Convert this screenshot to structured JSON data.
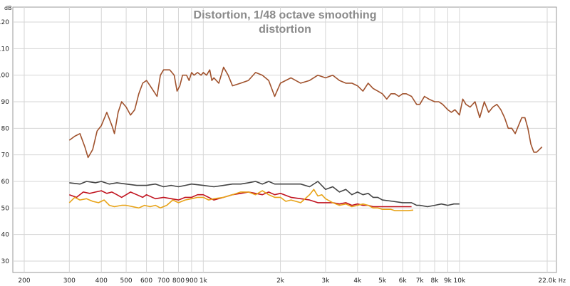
{
  "chart_data": {
    "type": "line",
    "title": "Distortion, 1/48 octave smoothing",
    "subtitle": "distortion",
    "ylabel": "dB",
    "xunit": "Hz",
    "xscale": "log",
    "xlim": [
      200,
      22000
    ],
    "ylim": [
      25,
      125
    ],
    "grid": true,
    "y_ticks": [
      30,
      40,
      50,
      60,
      70,
      80,
      90,
      100,
      110,
      120
    ],
    "x_ticks": [
      {
        "v": 200,
        "label": "200"
      },
      {
        "v": 300,
        "label": "300"
      },
      {
        "v": 400,
        "label": "400"
      },
      {
        "v": 500,
        "label": "500"
      },
      {
        "v": 600,
        "label": "600"
      },
      {
        "v": 700,
        "label": "700"
      },
      {
        "v": 800,
        "label": "800"
      },
      {
        "v": 900,
        "label": "900"
      },
      {
        "v": 1000,
        "label": "1k"
      },
      {
        "v": 2000,
        "label": "2k"
      },
      {
        "v": 3000,
        "label": "3k"
      },
      {
        "v": 4000,
        "label": "4k"
      },
      {
        "v": 5000,
        "label": "5k"
      },
      {
        "v": 6000,
        "label": "6k"
      },
      {
        "v": 7000,
        "label": "7k"
      },
      {
        "v": 8000,
        "label": "8k"
      },
      {
        "v": 9000,
        "label": "9k"
      },
      {
        "v": 10000,
        "label": "10k"
      },
      {
        "v": 22000,
        "label": "22.0k"
      }
    ],
    "series": [
      {
        "color": "#a0522d",
        "points": [
          [
            300,
            75.5
          ],
          [
            315,
            77
          ],
          [
            330,
            78
          ],
          [
            345,
            73
          ],
          [
            355,
            69
          ],
          [
            370,
            72
          ],
          [
            385,
            79
          ],
          [
            400,
            81
          ],
          [
            420,
            86
          ],
          [
            440,
            81
          ],
          [
            450,
            78
          ],
          [
            465,
            86
          ],
          [
            480,
            90
          ],
          [
            500,
            88
          ],
          [
            520,
            85
          ],
          [
            540,
            87
          ],
          [
            560,
            93
          ],
          [
            580,
            97
          ],
          [
            600,
            98
          ],
          [
            620,
            96
          ],
          [
            640,
            94
          ],
          [
            660,
            92
          ],
          [
            680,
            100
          ],
          [
            700,
            102
          ],
          [
            740,
            102
          ],
          [
            770,
            100
          ],
          [
            790,
            94
          ],
          [
            810,
            96
          ],
          [
            830,
            100
          ],
          [
            860,
            100
          ],
          [
            880,
            98
          ],
          [
            900,
            101
          ],
          [
            920,
            100
          ],
          [
            950,
            101
          ],
          [
            980,
            100
          ],
          [
            1000,
            101
          ],
          [
            1030,
            100
          ],
          [
            1060,
            102
          ],
          [
            1080,
            98
          ],
          [
            1100,
            99
          ],
          [
            1150,
            97
          ],
          [
            1200,
            103
          ],
          [
            1250,
            100
          ],
          [
            1300,
            96
          ],
          [
            1400,
            97
          ],
          [
            1500,
            98
          ],
          [
            1600,
            101
          ],
          [
            1700,
            100
          ],
          [
            1800,
            98
          ],
          [
            1900,
            92
          ],
          [
            2000,
            97
          ],
          [
            2200,
            99
          ],
          [
            2400,
            97
          ],
          [
            2600,
            98
          ],
          [
            2800,
            100
          ],
          [
            3000,
            99
          ],
          [
            3200,
            100
          ],
          [
            3400,
            98
          ],
          [
            3600,
            97
          ],
          [
            3800,
            97
          ],
          [
            4000,
            96
          ],
          [
            4200,
            94
          ],
          [
            4400,
            97
          ],
          [
            4600,
            95
          ],
          [
            4800,
            94
          ],
          [
            5000,
            93
          ],
          [
            5200,
            91
          ],
          [
            5400,
            93
          ],
          [
            5600,
            93
          ],
          [
            5800,
            92
          ],
          [
            6000,
            93
          ],
          [
            6200,
            93
          ],
          [
            6500,
            92
          ],
          [
            6800,
            89
          ],
          [
            7000,
            89
          ],
          [
            7300,
            92
          ],
          [
            7600,
            91
          ],
          [
            8000,
            90
          ],
          [
            8300,
            90
          ],
          [
            8600,
            89
          ],
          [
            9000,
            87
          ],
          [
            9300,
            86
          ],
          [
            9600,
            87
          ],
          [
            10000,
            85
          ],
          [
            10300,
            91
          ],
          [
            10600,
            89
          ],
          [
            11000,
            88
          ],
          [
            11500,
            90
          ],
          [
            12000,
            84
          ],
          [
            12500,
            90
          ],
          [
            13000,
            86
          ],
          [
            13500,
            88
          ],
          [
            14000,
            89
          ],
          [
            14500,
            87
          ],
          [
            15000,
            84
          ],
          [
            15500,
            80
          ],
          [
            16000,
            80
          ],
          [
            16500,
            78
          ],
          [
            17000,
            81
          ],
          [
            17500,
            84
          ],
          [
            18000,
            84
          ],
          [
            18500,
            80
          ],
          [
            19000,
            74
          ],
          [
            19500,
            71
          ],
          [
            20000,
            71
          ],
          [
            20500,
            72
          ],
          [
            21000,
            73
          ]
        ]
      },
      {
        "color": "#444444",
        "points": [
          [
            300,
            59.5
          ],
          [
            330,
            59
          ],
          [
            350,
            60
          ],
          [
            380,
            59.5
          ],
          [
            400,
            60
          ],
          [
            430,
            59
          ],
          [
            460,
            59.5
          ],
          [
            500,
            59
          ],
          [
            550,
            58.5
          ],
          [
            600,
            58.5
          ],
          [
            650,
            59
          ],
          [
            700,
            58
          ],
          [
            750,
            58.5
          ],
          [
            800,
            58
          ],
          [
            850,
            58.5
          ],
          [
            900,
            59
          ],
          [
            1000,
            58.5
          ],
          [
            1100,
            58
          ],
          [
            1200,
            58.5
          ],
          [
            1300,
            59
          ],
          [
            1400,
            59
          ],
          [
            1500,
            59.5
          ],
          [
            1600,
            60
          ],
          [
            1700,
            59
          ],
          [
            1800,
            60
          ],
          [
            1900,
            59
          ],
          [
            2000,
            59
          ],
          [
            2200,
            59
          ],
          [
            2400,
            59
          ],
          [
            2600,
            58
          ],
          [
            2800,
            60
          ],
          [
            3000,
            57
          ],
          [
            3200,
            58
          ],
          [
            3400,
            56
          ],
          [
            3600,
            57
          ],
          [
            3800,
            55
          ],
          [
            4000,
            56
          ],
          [
            4200,
            55
          ],
          [
            4400,
            55.5
          ],
          [
            4600,
            54
          ],
          [
            4800,
            54
          ],
          [
            5000,
            53
          ],
          [
            5500,
            52.5
          ],
          [
            6000,
            52
          ],
          [
            6500,
            52
          ],
          [
            6800,
            51
          ],
          [
            7000,
            51
          ],
          [
            7500,
            50.5
          ],
          [
            8000,
            51
          ],
          [
            8500,
            51.5
          ],
          [
            9000,
            51
          ],
          [
            9500,
            51.5
          ],
          [
            10000,
            51.5
          ]
        ]
      },
      {
        "color": "#c0121e",
        "points": [
          [
            300,
            55
          ],
          [
            320,
            54
          ],
          [
            340,
            56
          ],
          [
            360,
            55.5
          ],
          [
            380,
            56
          ],
          [
            400,
            56.5
          ],
          [
            420,
            55.5
          ],
          [
            440,
            56
          ],
          [
            460,
            55
          ],
          [
            480,
            54
          ],
          [
            500,
            55
          ],
          [
            520,
            56
          ],
          [
            550,
            55
          ],
          [
            580,
            54
          ],
          [
            600,
            55
          ],
          [
            650,
            53.5
          ],
          [
            700,
            54
          ],
          [
            750,
            53.5
          ],
          [
            800,
            53
          ],
          [
            850,
            54
          ],
          [
            900,
            54
          ],
          [
            950,
            55
          ],
          [
            1000,
            55
          ],
          [
            1100,
            53
          ],
          [
            1200,
            54
          ],
          [
            1300,
            55
          ],
          [
            1400,
            55.5
          ],
          [
            1500,
            56
          ],
          [
            1600,
            55.5
          ],
          [
            1700,
            55
          ],
          [
            1800,
            56
          ],
          [
            1900,
            55
          ],
          [
            2000,
            55.5
          ],
          [
            2200,
            54
          ],
          [
            2400,
            53.5
          ],
          [
            2600,
            53
          ],
          [
            2800,
            52
          ],
          [
            3000,
            52
          ],
          [
            3200,
            52
          ],
          [
            3400,
            51.5
          ],
          [
            3600,
            52
          ],
          [
            3800,
            51
          ],
          [
            4000,
            51.5
          ],
          [
            4200,
            51
          ],
          [
            4400,
            51
          ],
          [
            4600,
            50.5
          ],
          [
            4800,
            50.5
          ],
          [
            5000,
            50.5
          ],
          [
            5500,
            50.5
          ],
          [
            6000,
            50.5
          ],
          [
            6500,
            50.5
          ]
        ]
      },
      {
        "color": "#e8a317",
        "points": [
          [
            300,
            52
          ],
          [
            315,
            54
          ],
          [
            330,
            53
          ],
          [
            350,
            53.5
          ],
          [
            370,
            52.5
          ],
          [
            390,
            52
          ],
          [
            410,
            53
          ],
          [
            430,
            51
          ],
          [
            450,
            50.5
          ],
          [
            480,
            51
          ],
          [
            500,
            51
          ],
          [
            530,
            50.5
          ],
          [
            560,
            50
          ],
          [
            590,
            51
          ],
          [
            620,
            50.5
          ],
          [
            650,
            51
          ],
          [
            680,
            50
          ],
          [
            720,
            51
          ],
          [
            760,
            53
          ],
          [
            800,
            52
          ],
          [
            850,
            53
          ],
          [
            900,
            53.5
          ],
          [
            950,
            54
          ],
          [
            1000,
            54
          ],
          [
            1050,
            53
          ],
          [
            1100,
            53.5
          ],
          [
            1200,
            54
          ],
          [
            1300,
            55
          ],
          [
            1400,
            56
          ],
          [
            1500,
            56
          ],
          [
            1600,
            55
          ],
          [
            1700,
            56.5
          ],
          [
            1800,
            55
          ],
          [
            1900,
            54
          ],
          [
            2000,
            54
          ],
          [
            2100,
            52.5
          ],
          [
            2200,
            53
          ],
          [
            2400,
            52
          ],
          [
            2600,
            55
          ],
          [
            2700,
            57
          ],
          [
            2800,
            54.5
          ],
          [
            2900,
            55
          ],
          [
            3000,
            53.5
          ],
          [
            3200,
            52
          ],
          [
            3400,
            51
          ],
          [
            3600,
            51.5
          ],
          [
            3800,
            50.5
          ],
          [
            4000,
            51
          ],
          [
            4200,
            51.5
          ],
          [
            4400,
            51
          ],
          [
            4600,
            50
          ],
          [
            4800,
            50
          ],
          [
            5000,
            49.5
          ],
          [
            5200,
            49.5
          ],
          [
            5400,
            49.5
          ],
          [
            5600,
            49
          ],
          [
            5800,
            49
          ],
          [
            6000,
            49
          ],
          [
            6300,
            49
          ],
          [
            6600,
            49.2
          ]
        ]
      }
    ]
  }
}
